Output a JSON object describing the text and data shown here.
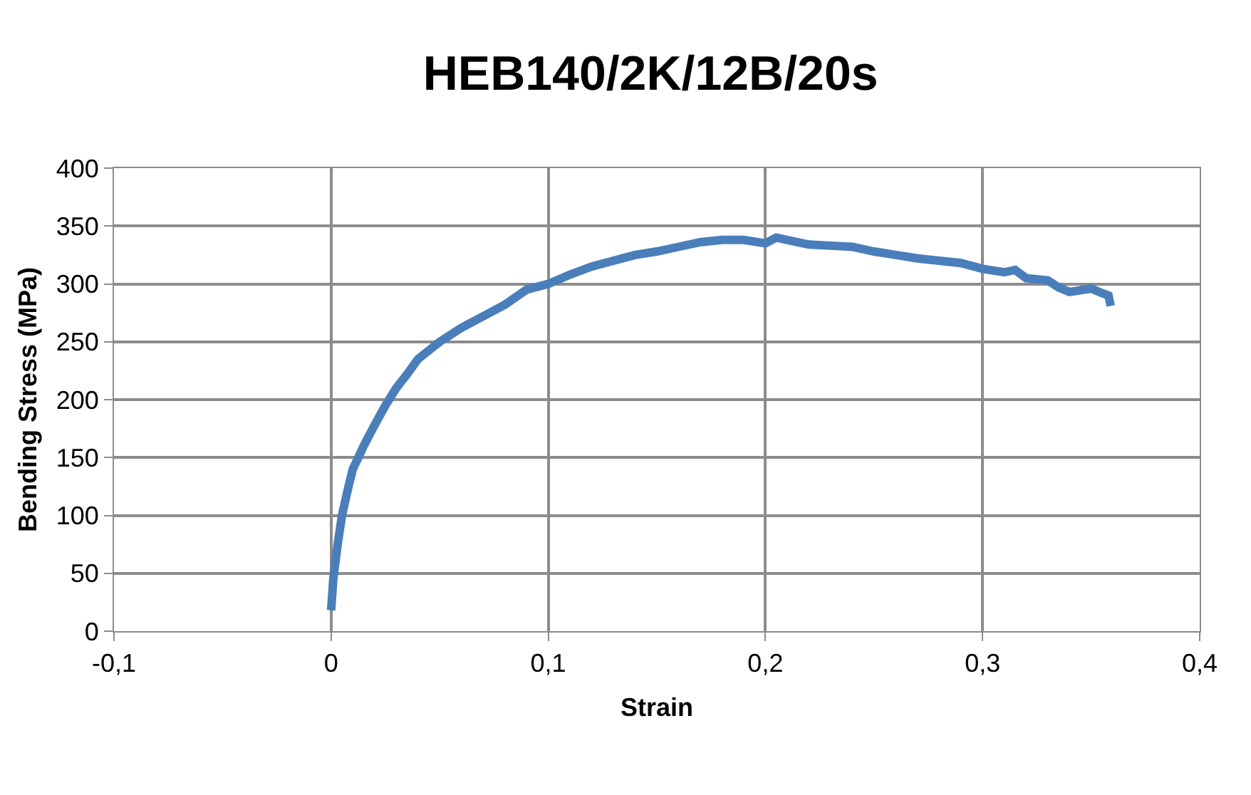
{
  "chart_data": {
    "type": "line",
    "title": "HEB140/2K/12B/20s",
    "xlabel": "Strain",
    "ylabel": "Bending Stress (MPa)",
    "x": [
      0,
      0.001,
      0.003,
      0.005,
      0.008,
      0.01,
      0.015,
      0.02,
      0.025,
      0.03,
      0.035,
      0.04,
      0.05,
      0.06,
      0.07,
      0.08,
      0.09,
      0.1,
      0.11,
      0.12,
      0.13,
      0.14,
      0.15,
      0.16,
      0.17,
      0.18,
      0.19,
      0.2,
      0.205,
      0.21,
      0.22,
      0.23,
      0.24,
      0.25,
      0.26,
      0.27,
      0.28,
      0.29,
      0.3,
      0.31,
      0.315,
      0.32,
      0.33,
      0.335,
      0.34,
      0.35,
      0.355,
      0.358,
      0.359
    ],
    "series": [
      {
        "color": "#4a7ebb",
        "values": [
          18,
          45,
          75,
          100,
          125,
          140,
          160,
          178,
          195,
          210,
          222,
          235,
          250,
          262,
          272,
          282,
          295,
          300,
          308,
          315,
          320,
          325,
          328,
          332,
          336,
          338,
          338,
          335,
          340,
          338,
          334,
          333,
          332,
          328,
          325,
          322,
          320,
          318,
          313,
          310,
          312,
          305,
          303,
          297,
          293,
          296,
          292,
          290,
          281
        ]
      }
    ],
    "xlim": [
      -0.1,
      0.4
    ],
    "xticks": [
      {
        "value": -0.1,
        "label": "-0,1"
      },
      0,
      {
        "value": 0.1,
        "label": "0,1"
      },
      {
        "value": 0.2,
        "label": "0,2"
      },
      {
        "value": 0.3,
        "label": "0,3"
      },
      {
        "value": 0.4,
        "label": "0,4"
      }
    ],
    "ylim": [
      0,
      400
    ],
    "yticks": [
      0,
      50,
      100,
      150,
      200,
      250,
      300,
      350,
      400
    ],
    "grid": true
  }
}
